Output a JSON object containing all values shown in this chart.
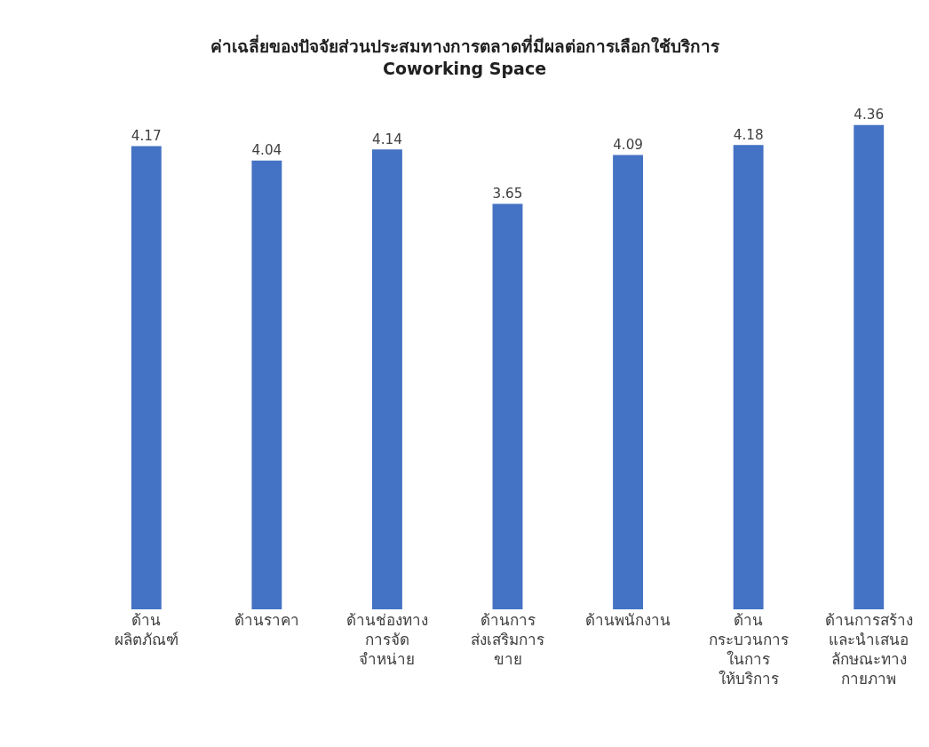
{
  "chart_data": {
    "type": "bar",
    "title": "ค่าเฉลี่ยของปัจจัยส่วนประสมทางการตลาดที่มีผลต่อการเลือกใช้บริการ\nCoworking Space",
    "categories": [
      "ด้าน\nผลิตภัณฑ์",
      "ด้านราคา",
      "ด้านช่องทาง\nการจัด\nจำหน่าย",
      "ด้านการ\nส่งเสริมการ\nขาย",
      "ด้านพนักงาน",
      "ด้าน\nกระบวนการ\nในการ\nให้บริการ",
      "ด้านการสร้าง\nและนำเสนอ\nลักษณะทาง\nกายภาพ"
    ],
    "values": [
      4.17,
      4.04,
      4.14,
      3.65,
      4.09,
      4.18,
      4.36
    ],
    "color": "#4472c4",
    "tick_labels": "x",
    "data_labels": true,
    "grid": false,
    "legend": false
  }
}
